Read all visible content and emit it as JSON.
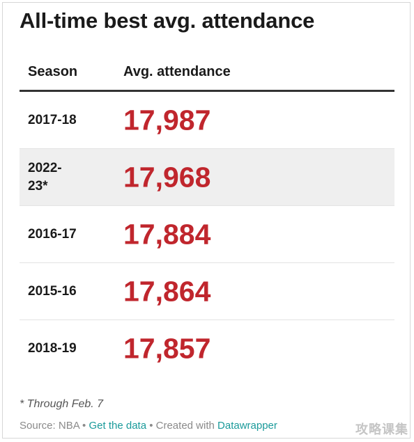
{
  "title": "All-time best avg. attendance",
  "table": {
    "columns": [
      "Season",
      "Avg. attendance"
    ],
    "rows": [
      {
        "season": "2017-18",
        "value": "17,987",
        "shaded": false
      },
      {
        "season": "2022-\n23*",
        "value": "17,968",
        "shaded": true
      },
      {
        "season": "2016-17",
        "value": "17,884",
        "shaded": false
      },
      {
        "season": "2015-16",
        "value": "17,864",
        "shaded": false
      },
      {
        "season": "2018-19",
        "value": "17,857",
        "shaded": false
      }
    ]
  },
  "footnote": "* Through Feb. 7",
  "source": {
    "prefix": "Source: NBA",
    "separator": " • ",
    "get_data_label": "Get the data",
    "created_with_label": "Created with ",
    "tool_label": "Datawrapper"
  },
  "watermark": "攻略课集",
  "colors": {
    "value_red": "#c0262d",
    "link_teal": "#1a9a9a",
    "shaded_row": "#efefef"
  }
}
